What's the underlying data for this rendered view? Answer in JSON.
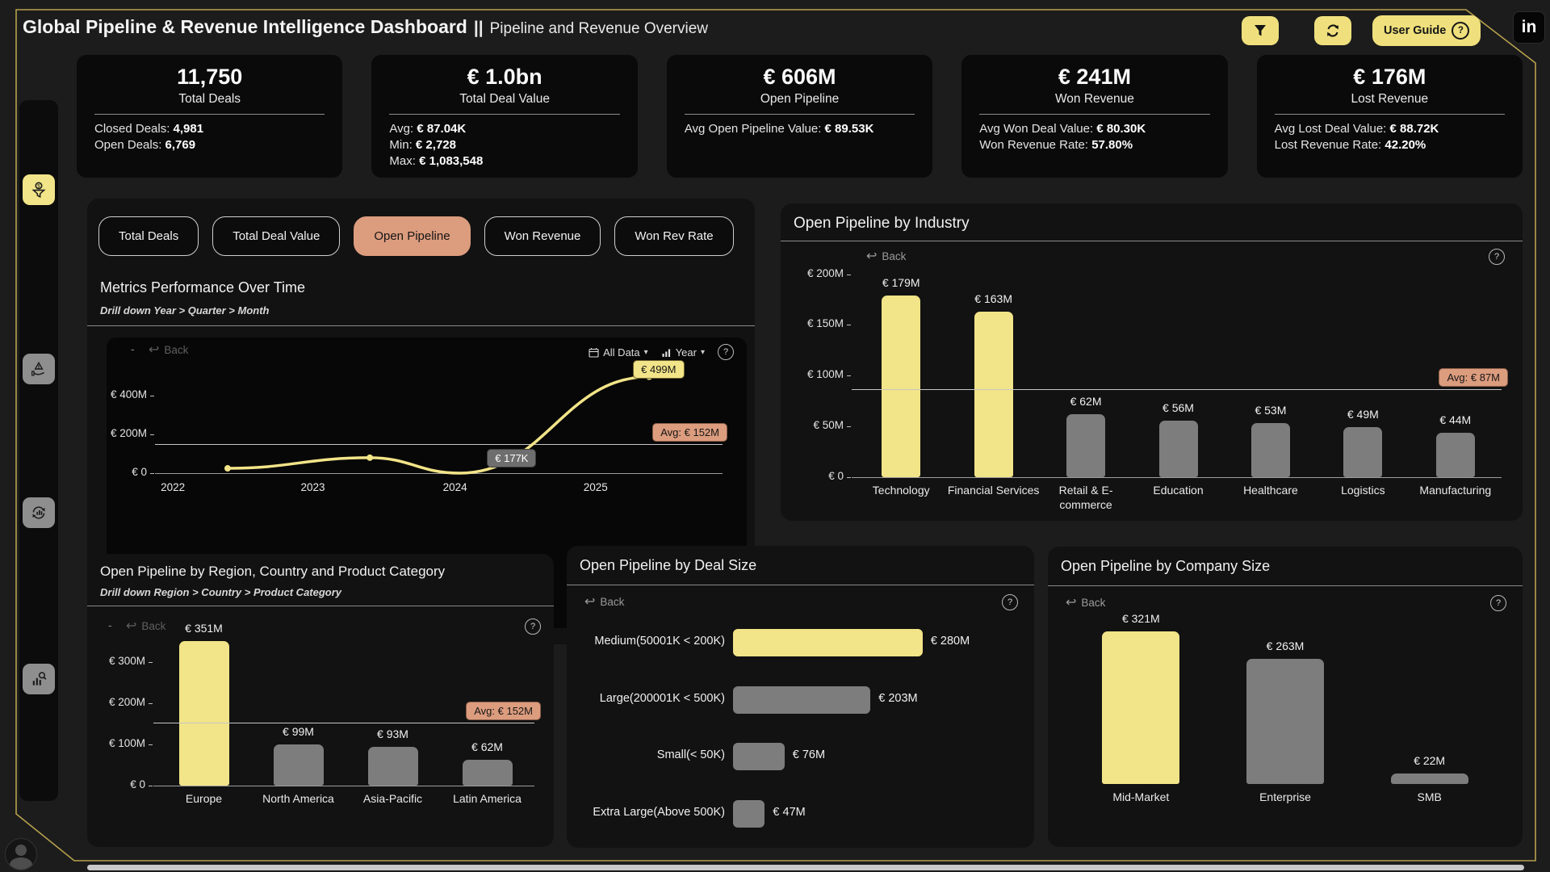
{
  "glyphs": {
    "help": "?",
    "dropdown_arrow": "▾",
    "back_arrow": "↩",
    "title_separator": "||",
    "collapse_dash": "-"
  },
  "colors": {
    "accent_yellow": "#F2E488",
    "button_yellow": "#EFE07D",
    "accent_salmon": "#DC9C7E",
    "bar_gray": "#7D7D7D",
    "gold_border": "#B7A14E",
    "pill_gray": "#6E6E6E"
  },
  "header": {
    "title": "Global Pipeline & Revenue Intelligence Dashboard",
    "subtitle": "Pipeline and Revenue Overview",
    "user_guide_label": "User Guide",
    "linkedin_label": "in"
  },
  "sidebar": {
    "items": [
      {
        "icon": "funnel-dollar-icon",
        "active": true
      },
      {
        "icon": "hand-risk-icon",
        "active": false
      },
      {
        "icon": "renewal-chart-icon",
        "active": false
      },
      {
        "icon": "chart-magnifier-icon",
        "active": false
      }
    ]
  },
  "kpi_cards": [
    {
      "value": "11,750",
      "label": "Total Deals",
      "details": [
        {
          "label": "Closed Deals:",
          "value": "4,981"
        },
        {
          "label": "Open Deals:",
          "value": "6,769"
        }
      ]
    },
    {
      "value": "€ 1.0bn",
      "label": "Total Deal Value",
      "details": [
        {
          "label": "Avg:",
          "value": "€ 87.04K"
        },
        {
          "label": "Min:",
          "value": "€ 2,728"
        },
        {
          "label": "Max:",
          "value": "€ 1,083,548"
        }
      ]
    },
    {
      "value": "€ 606M",
      "label": "Open Pipeline",
      "details": [
        {
          "label": "Avg Open Pipeline Value:",
          "value": "€ 89.53K"
        }
      ]
    },
    {
      "value": "€ 241M",
      "label": "Won Revenue",
      "details": [
        {
          "label": "Avg Won Deal Value:",
          "value": "€ 80.30K"
        },
        {
          "label": "Won Revenue Rate:",
          "value": "57.80%"
        }
      ]
    },
    {
      "value": "€ 176M",
      "label": "Lost Revenue",
      "details": [
        {
          "label": "Avg Lost Deal Value:",
          "value": "€ 88.72K"
        },
        {
          "label": "Lost Revenue Rate:",
          "value": "42.20%"
        }
      ]
    }
  ],
  "metric_tabs": [
    {
      "label": "Total Deals",
      "active": false
    },
    {
      "label": "Total Deal Value",
      "active": false
    },
    {
      "label": "Open Pipeline",
      "active": true
    },
    {
      "label": "Won Revenue",
      "active": false
    },
    {
      "label": "Won Rev Rate",
      "active": false
    }
  ],
  "panels": {
    "metrics": {
      "title": "Metrics Performance Over Time",
      "subtitle": "Drill down Year > Quarter > Month",
      "back_label": "Back",
      "collapse_glyph": "-",
      "controls": {
        "date_range": "All Data",
        "granularity": "Year"
      }
    },
    "industry": {
      "title": "Open Pipeline by Industry",
      "back_label": "Back"
    },
    "region": {
      "title": "Open Pipeline by Region, Country and Product Category",
      "subtitle": "Drill down Region > Country > Product Category",
      "back_label": "Back",
      "collapse_glyph": "-"
    },
    "deal_size": {
      "title": "Open Pipeline by Deal Size",
      "back_label": "Back"
    },
    "company_size": {
      "title": "Open Pipeline by Company Size",
      "back_label": "Back"
    }
  },
  "chart_data": [
    {
      "id": "metrics_over_time",
      "type": "line",
      "title": "Metrics Performance Over Time",
      "x_ticks": [
        "2022",
        "2023",
        "2024",
        "2025"
      ],
      "series": [
        {
          "name": "Open Pipeline",
          "color": "#F2E488",
          "points": [
            {
              "x": "2022",
              "value_m": 25,
              "estimated": true
            },
            {
              "x": "2023",
              "value_m": 80,
              "estimated": true
            },
            {
              "x": "2024",
              "value_m": 0.177,
              "label": "€ 177K",
              "label_style": "gray"
            },
            {
              "x": "2025",
              "value_m": 499,
              "label": "€ 499M",
              "label_style": "yellow"
            }
          ]
        }
      ],
      "avg_m": 152,
      "avg_label": "Avg: € 152M",
      "y_ticks": [
        {
          "value_m": 400,
          "label": "€ 400M"
        },
        {
          "value_m": 200,
          "label": "€ 200M"
        },
        {
          "value_m": 0,
          "label": "€ 0"
        }
      ],
      "ylim_m": [
        0,
        560
      ],
      "grid": false,
      "legend": false
    },
    {
      "id": "industry",
      "type": "bar",
      "title": "Open Pipeline by Industry",
      "categories": [
        "Technology",
        "Financial Services",
        "Retail & E-commerce",
        "Education",
        "Healthcare",
        "Logistics",
        "Manufacturing"
      ],
      "values_m": [
        179,
        163,
        62,
        56,
        53,
        49,
        44
      ],
      "bar_labels": [
        "€ 179M",
        "€ 163M",
        "€ 62M",
        "€ 56M",
        "€ 53M",
        "€ 49M",
        "€ 44M"
      ],
      "highlighted": [
        true,
        true,
        false,
        false,
        false,
        false,
        false
      ],
      "avg_m": 87,
      "avg_label": "Avg: € 87M",
      "y_ticks": [
        {
          "value_m": 200,
          "label": "€ 200M"
        },
        {
          "value_m": 150,
          "label": "€ 150M"
        },
        {
          "value_m": 100,
          "label": "€ 100M"
        },
        {
          "value_m": 50,
          "label": "€ 50M"
        },
        {
          "value_m": 0,
          "label": "€ 0"
        }
      ],
      "ylim_m": [
        0,
        206
      ]
    },
    {
      "id": "region",
      "type": "bar",
      "title": "Open Pipeline by Region, Country and Product Category",
      "categories": [
        "Europe",
        "North America",
        "Asia-Pacific",
        "Latin America"
      ],
      "values_m": [
        351,
        99,
        93,
        62
      ],
      "bar_labels": [
        "€ 351M",
        "€ 99M",
        "€ 93M",
        "€ 62M"
      ],
      "highlighted": [
        true,
        false,
        false,
        false
      ],
      "avg_m": 152,
      "avg_label": "Avg: € 152M",
      "y_ticks": [
        {
          "value_m": 300,
          "label": "€ 300M"
        },
        {
          "value_m": 200,
          "label": "€ 200M"
        },
        {
          "value_m": 100,
          "label": "€ 100M"
        },
        {
          "value_m": 0,
          "label": "€ 0"
        }
      ],
      "ylim_m": [
        0,
        366
      ]
    },
    {
      "id": "deal_size",
      "type": "hbar",
      "title": "Open Pipeline by Deal Size",
      "categories": [
        "Medium(50001K < 200K)",
        "Large(200001K < 500K)",
        "Small(< 50K)",
        "Extra Large(Above 500K)"
      ],
      "values_m": [
        280,
        203,
        76,
        47
      ],
      "bar_labels": [
        "€ 280M",
        "€ 203M",
        "€ 76M",
        "€ 47M"
      ],
      "highlighted": [
        true,
        false,
        false,
        false
      ],
      "xlim_m": [
        0,
        310
      ]
    },
    {
      "id": "company_size",
      "type": "bar",
      "title": "Open Pipeline by Company Size",
      "categories": [
        "Mid-Market",
        "Enterprise",
        "SMB"
      ],
      "values_m": [
        321,
        263,
        22
      ],
      "bar_labels": [
        "€ 321M",
        "€ 263M",
        "€ 22M"
      ],
      "highlighted": [
        true,
        false,
        false
      ],
      "y_ticks": [],
      "ylim_m": [
        0,
        330
      ]
    }
  ]
}
